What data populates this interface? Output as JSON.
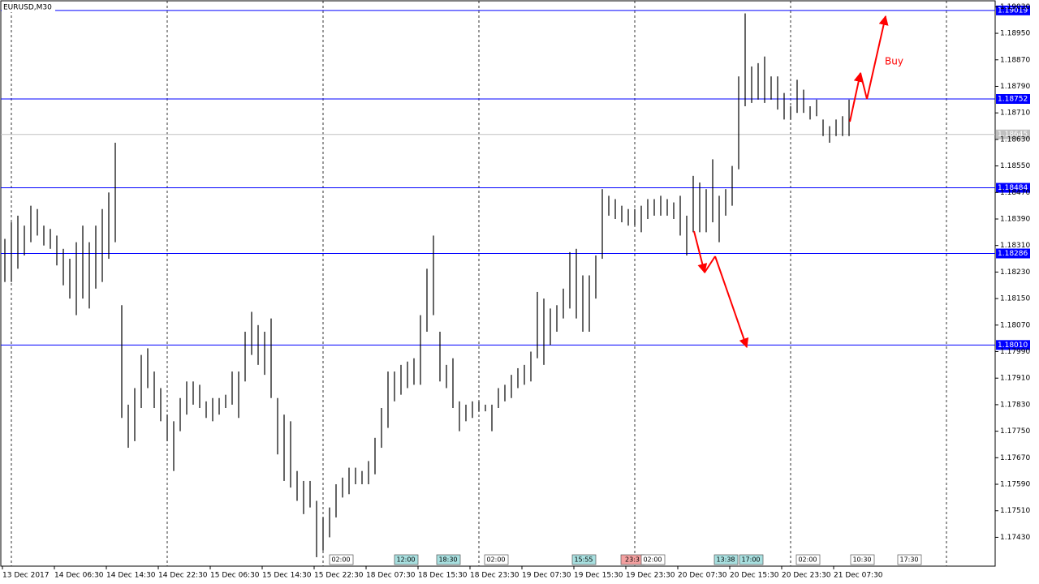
{
  "chart_data": {
    "type": "range-bar",
    "title": "EURUSD,M30",
    "categories": [
      "13 Dec 2017",
      null,
      null,
      null,
      null,
      null,
      null,
      null,
      "14 Dec 06:30",
      null,
      null,
      null,
      null,
      null,
      null,
      null,
      "14 Dec 14:30",
      null,
      null,
      null,
      null,
      null,
      null,
      null,
      "14 Dec 22:30",
      null,
      null,
      null,
      null,
      null,
      null,
      null,
      "15 Dec 06:30",
      null,
      null,
      null,
      null,
      null,
      null,
      null,
      "15 Dec 14:30",
      null,
      null,
      null,
      null,
      null,
      null,
      null,
      "15 Dec 22:30",
      null,
      null,
      null,
      null,
      null,
      null,
      null,
      "18 Dec 07:30",
      null,
      null,
      null,
      null,
      null,
      null,
      null,
      "18 Dec 15:30",
      null,
      null,
      null,
      null,
      null,
      null,
      null,
      "18 Dec 23:30",
      null,
      null,
      null,
      null,
      null,
      null,
      null,
      "19 Dec 07:30",
      null,
      null,
      null,
      null,
      null,
      null,
      null,
      "19 Dec 15:30",
      null,
      null,
      null,
      null,
      null,
      null,
      null,
      "19 Dec 23:30",
      null,
      null,
      null,
      null,
      null,
      null,
      null,
      "20 Dec 07:30",
      null,
      null,
      null,
      null,
      null,
      null,
      null,
      "20 Dec 15:30",
      null,
      null,
      null,
      null,
      null,
      null,
      null,
      "20 Dec 23:30",
      null,
      null,
      null,
      null,
      null,
      null,
      null,
      "21 Dec 07:30",
      null,
      null
    ],
    "high": [
      1.1833,
      1.1838,
      1.184,
      1.1837,
      1.1843,
      1.1842,
      1.1837,
      1.1836,
      1.1834,
      1.183,
      1.1827,
      1.1832,
      1.1837,
      1.1832,
      1.1837,
      1.1842,
      1.1847,
      1.1862,
      1.1813,
      1.1783,
      1.1788,
      1.1798,
      1.18,
      1.1793,
      1.1788,
      1.178,
      1.1778,
      1.1785,
      1.179,
      1.179,
      1.1789,
      1.1784,
      1.1785,
      1.1785,
      1.1786,
      1.1793,
      1.1793,
      1.1805,
      1.1811,
      1.1807,
      1.1805,
      1.1809,
      1.1785,
      1.178,
      1.1778,
      1.1763,
      1.176,
      1.176,
      1.1754,
      1.1749,
      1.1752,
      1.1759,
      1.1761,
      1.1764,
      1.1764,
      1.1763,
      1.1766,
      1.1773,
      1.1782,
      1.1793,
      1.1793,
      1.1795,
      1.1796,
      1.1797,
      1.181,
      1.1824,
      1.1834,
      1.1805,
      1.1795,
      1.1797,
      1.1784,
      1.1783,
      1.1784,
      1.1784,
      1.1783,
      1.1783,
      1.1788,
      1.1789,
      1.1792,
      1.1794,
      1.1795,
      1.1799,
      1.1817,
      1.1815,
      1.1812,
      1.1813,
      1.1818,
      1.1829,
      1.183,
      1.1822,
      1.1822,
      1.1828,
      1.1848,
      1.1846,
      1.1845,
      1.1843,
      1.1842,
      1.1842,
      1.1843,
      1.1845,
      1.1845,
      1.1846,
      1.1845,
      1.1844,
      1.1846,
      1.184,
      1.1852,
      1.185,
      1.1848,
      1.1857,
      1.1846,
      1.1848,
      1.1855,
      1.1882,
      1.1901,
      1.1885,
      1.1886,
      1.1888,
      1.1882,
      1.1882,
      1.1877,
      1.1873,
      1.1881,
      1.1878,
      1.1873,
      1.1875,
      1.1869,
      1.1867,
      1.1869,
      1.187,
      1.1875
    ],
    "low": [
      1.182,
      1.182,
      1.1824,
      1.1828,
      1.1832,
      1.1834,
      1.1831,
      1.183,
      1.1825,
      1.1819,
      1.1815,
      1.181,
      1.1815,
      1.1812,
      1.1818,
      1.182,
      1.1827,
      1.1832,
      1.1779,
      1.177,
      1.1772,
      1.1782,
      1.1788,
      1.1782,
      1.1778,
      1.1772,
      1.1763,
      1.1775,
      1.178,
      1.1783,
      1.1782,
      1.1779,
      1.1778,
      1.178,
      1.1782,
      1.1783,
      1.1779,
      1.179,
      1.1798,
      1.1795,
      1.1792,
      1.1785,
      1.1768,
      1.176,
      1.1758,
      1.1754,
      1.175,
      1.1752,
      1.1737,
      1.1739,
      1.1743,
      1.1749,
      1.1755,
      1.1756,
      1.1759,
      1.1759,
      1.1759,
      1.1762,
      1.177,
      1.1776,
      1.1784,
      1.1786,
      1.1788,
      1.1789,
      1.1789,
      1.1805,
      1.181,
      1.179,
      1.1788,
      1.1782,
      1.1775,
      1.1778,
      1.1779,
      1.1781,
      1.1781,
      1.1775,
      1.1782,
      1.1784,
      1.1785,
      1.1788,
      1.1789,
      1.179,
      1.1797,
      1.1795,
      1.1801,
      1.1805,
      1.1809,
      1.1812,
      1.1809,
      1.1805,
      1.1805,
      1.1815,
      1.1827,
      1.184,
      1.1839,
      1.1838,
      1.1837,
      1.1837,
      1.1835,
      1.1839,
      1.184,
      1.184,
      1.184,
      1.1839,
      1.1834,
      1.1828,
      1.1835,
      1.1835,
      1.1835,
      1.1838,
      1.1832,
      1.184,
      1.1843,
      1.1854,
      1.1873,
      1.1874,
      1.1875,
      1.1874,
      1.1875,
      1.1872,
      1.1869,
      1.1869,
      1.1871,
      1.1871,
      1.1869,
      1.187,
      1.1864,
      1.1862,
      1.1864,
      1.1864,
      1.1864
    ],
    "color": "#000000",
    "ylim": [
      1.17343,
      1.19048
    ],
    "yticks": [
      {
        "value": 1.1903,
        "label": "1.19030"
      },
      {
        "value": 1.1895,
        "label": "1.18950"
      },
      {
        "value": 1.1887,
        "label": "1.18870"
      },
      {
        "value": 1.1879,
        "label": "1.18790"
      },
      {
        "value": 1.1871,
        "label": "1.18710"
      },
      {
        "value": 1.1863,
        "label": "1.18630"
      },
      {
        "value": 1.1855,
        "label": "1.18550"
      },
      {
        "value": 1.1847,
        "label": "1.18470"
      },
      {
        "value": 1.1839,
        "label": "1.18390"
      },
      {
        "value": 1.1831,
        "label": "1.18310"
      },
      {
        "value": 1.1823,
        "label": "1.18230"
      },
      {
        "value": 1.1815,
        "label": "1.18150"
      },
      {
        "value": 1.1807,
        "label": "1.18070"
      },
      {
        "value": 1.1799,
        "label": "1.17990"
      },
      {
        "value": 1.1791,
        "label": "1.17910"
      },
      {
        "value": 1.1783,
        "label": "1.17830"
      },
      {
        "value": 1.1775,
        "label": "1.17750"
      },
      {
        "value": 1.1767,
        "label": "1.17670"
      },
      {
        "value": 1.1759,
        "label": "1.17590"
      },
      {
        "value": 1.1751,
        "label": "1.17510"
      },
      {
        "value": 1.1743,
        "label": "1.17430"
      }
    ],
    "levels": [
      1.19019,
      1.18752,
      1.18484,
      1.18286,
      {
        "value": 1.1801,
        "label": "1.18010"
      }
    ],
    "level_color": "#0000ff",
    "current_price": 1.18645,
    "annotation": "Buy",
    "events": [
      "02:00",
      "12:00",
      "18:30",
      "02:00",
      "15:55",
      "23:3",
      "02:00",
      "13:38",
      "17:00",
      "02:00",
      "10:30",
      "17:30"
    ]
  }
}
